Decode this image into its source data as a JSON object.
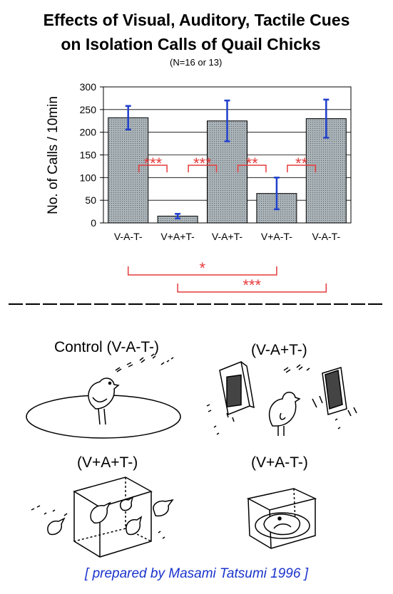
{
  "header": {
    "title_line1": "Effects of Visual, Auditory, Tactile Cues",
    "title_line2": "on Isolation Calls of Quail Chicks",
    "subtitle": "(N=16 or 13)"
  },
  "chart_data": {
    "type": "bar",
    "categories": [
      "V-A-T-",
      "V+A+T-",
      "V-A+T-",
      "V+A-T-",
      "V-A-T-"
    ],
    "values": [
      232,
      15,
      225,
      65,
      230
    ],
    "error_high": [
      258,
      20,
      270,
      100,
      272
    ],
    "error_low": [
      206,
      10,
      180,
      30,
      188
    ],
    "ylabel": "No. of Calls / 10min",
    "ylim": [
      0,
      300
    ],
    "yticks": [
      0,
      50,
      100,
      150,
      200,
      250,
      300
    ],
    "comparisons": [
      {
        "from": 0,
        "to": 1,
        "label": "***"
      },
      {
        "from": 1,
        "to": 2,
        "label": "***"
      },
      {
        "from": 2,
        "to": 3,
        "label": "**"
      },
      {
        "from": 3,
        "to": 4,
        "label": "**"
      },
      {
        "from": 0,
        "to": 3,
        "label": "*"
      },
      {
        "from": 1,
        "to": 4,
        "label": "***"
      }
    ],
    "colors": {
      "bar": "#aab3b8",
      "error": "#1f3fcc",
      "significance": "#e53b3b"
    }
  },
  "illustrations": {
    "control": "Control (V-A-T-)",
    "tactile": "(V-A+T-)",
    "visual_auditory": "(V+A+T-)",
    "visual": "(V+A-T-)"
  },
  "credit": "[ prepared by Masami Tatsumi 1996 ]"
}
